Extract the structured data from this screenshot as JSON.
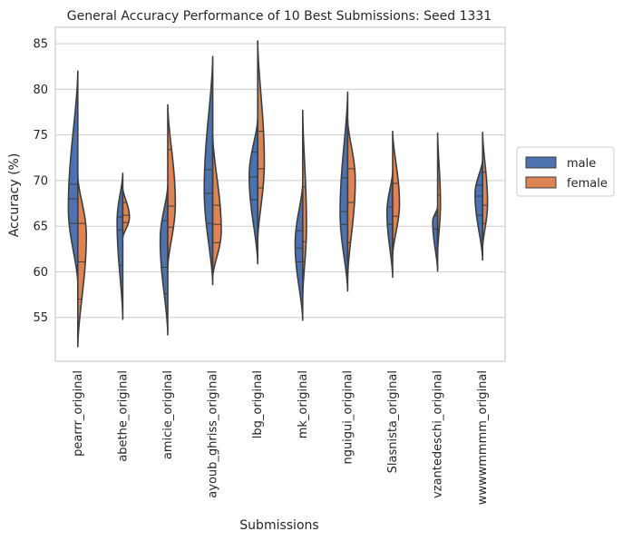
{
  "chart_data": {
    "type": "violin",
    "title": "General Accuracy  Performance of 10 Best Submissions: Seed 1331",
    "xlabel": "Submissions",
    "ylabel": "Accuracy (%)",
    "ylim": [
      50.2,
      86.8
    ],
    "yticks": [
      55,
      60,
      65,
      70,
      75,
      80,
      85
    ],
    "grid": true,
    "split": true,
    "inner": "quartile",
    "legend": {
      "position": "right",
      "entries": [
        "male",
        "female"
      ]
    },
    "colors": {
      "male": "#4c72b0",
      "female": "#dd8452"
    },
    "categories": [
      "pearrr_original",
      "abethe_original",
      "amicie_original",
      "ayoub_ghriss_original",
      "lbg_original",
      "mk_original",
      "nguigui_original",
      "Slasnista_original",
      "vzantedeschi_original",
      "wwwwmmmm_original"
    ],
    "series": [
      {
        "name": "male",
        "violins": [
          {
            "min": 58.7,
            "max": 82.0,
            "q1": 65.3,
            "median": 68.0,
            "q3": 69.6,
            "mode": 67.0,
            "width": 0.5
          },
          {
            "min": 54.8,
            "max": 70.8,
            "q1": 60.7,
            "median": 64.6,
            "q3": 66.0,
            "mode": 65.5,
            "width": 0.3
          },
          {
            "min": 53.1,
            "max": 69.5,
            "q1": 57.6,
            "median": 60.5,
            "q3": 65.6,
            "mode": 63.5,
            "width": 0.4
          },
          {
            "min": 58.6,
            "max": 83.6,
            "q1": 65.3,
            "median": 68.6,
            "q3": 71.2,
            "mode": 69.0,
            "width": 0.45
          },
          {
            "min": 60.9,
            "max": 76.8,
            "q1": 67.9,
            "median": 70.4,
            "q3": 73.1,
            "mode": 70.5,
            "width": 0.45
          },
          {
            "min": 54.7,
            "max": 69.7,
            "q1": 61.1,
            "median": 62.6,
            "q3": 64.5,
            "mode": 63.0,
            "width": 0.4
          },
          {
            "min": 57.9,
            "max": 79.7,
            "q1": 65.2,
            "median": 66.6,
            "q3": 70.3,
            "mode": 66.5,
            "width": 0.4
          },
          {
            "min": 59.4,
            "max": 71.0,
            "q1": 65.2,
            "median": 67.1,
            "q3": 69.6,
            "mode": 66.5,
            "width": 0.3
          },
          {
            "min": 60.1,
            "max": 67.1,
            "q1": 62.6,
            "median": 64.7,
            "q3": 66.2,
            "mode": 65.5,
            "width": 0.26
          },
          {
            "min": 61.3,
            "max": 72.3,
            "q1": 66.2,
            "median": 68.3,
            "q3": 69.5,
            "mode": 68.5,
            "width": 0.4
          }
        ]
      },
      {
        "name": "female",
        "violins": [
          {
            "min": 51.8,
            "max": 70.5,
            "q1": 57.0,
            "median": 61.1,
            "q3": 65.3,
            "mode": 64.0,
            "width": 0.45
          },
          {
            "min": 63.7,
            "max": 69.2,
            "q1": 65.4,
            "median": 66.2,
            "q3": 67.6,
            "mode": 66.0,
            "width": 0.35
          },
          {
            "min": 60.4,
            "max": 78.3,
            "q1": 64.9,
            "median": 67.2,
            "q3": 73.4,
            "mode": 67.5,
            "width": 0.4
          },
          {
            "min": 59.4,
            "max": 75.0,
            "q1": 63.2,
            "median": 65.2,
            "q3": 67.3,
            "mode": 64.5,
            "width": 0.45
          },
          {
            "min": 63.4,
            "max": 85.3,
            "q1": 69.2,
            "median": 71.3,
            "q3": 75.4,
            "mode": 72.0,
            "width": 0.35
          },
          {
            "min": 57.2,
            "max": 77.7,
            "q1": 61.1,
            "median": 63.3,
            "q3": 69.3,
            "mode": 65.0,
            "width": 0.2
          },
          {
            "min": 59.3,
            "max": 76.7,
            "q1": 63.2,
            "median": 67.6,
            "q3": 71.3,
            "mode": 70.0,
            "width": 0.4
          },
          {
            "min": 61.8,
            "max": 75.4,
            "q1": 63.6,
            "median": 66.1,
            "q3": 69.7,
            "mode": 67.5,
            "width": 0.36
          },
          {
            "min": 62.0,
            "max": 75.2,
            "q1": 64.6,
            "median": 68.4,
            "q3": 71.3,
            "mode": 67.5,
            "width": 0.15
          },
          {
            "min": 62.6,
            "max": 75.3,
            "q1": 65.3,
            "median": 67.3,
            "q3": 70.9,
            "mode": 67.5,
            "width": 0.26
          }
        ]
      }
    ]
  }
}
